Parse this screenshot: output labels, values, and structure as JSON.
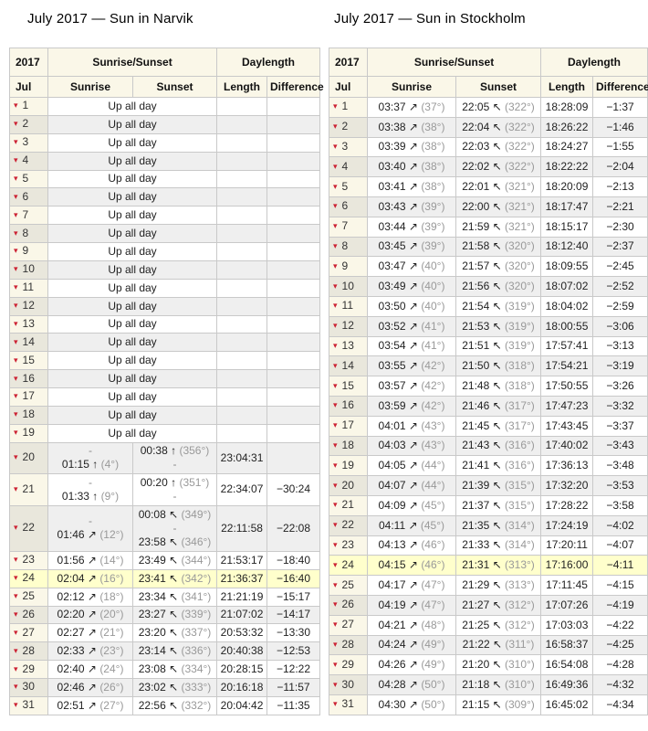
{
  "titles": {
    "narvik": "July 2017 — Sun in Narvik",
    "stockholm": "July 2017 — Sun in Stockholm"
  },
  "header": {
    "year": "2017",
    "month": "Jul",
    "group_rise_set": "Sunrise/Sunset",
    "group_daylength": "Daylength",
    "col_sunrise": "Sunrise",
    "col_sunset": "Sunset",
    "col_length": "Length",
    "col_difference": "Difference"
  },
  "labels": {
    "up_all_day": "Up all day"
  },
  "icons": {
    "expand_row": "▾"
  },
  "colors": {
    "header_bg": "#faf7e8",
    "day_col_bg": "#faf7e8",
    "day_col_alt_bg": "#e9e7dc",
    "row_alt_bg": "#efefef",
    "row_highlight_bg": "#ffffcc",
    "expand_triangle": "#cc2233",
    "azimuth_text": "#999999",
    "border": "#c9c9c9"
  },
  "narvik": {
    "rows": [
      {
        "day": 1,
        "up": true
      },
      {
        "day": 2,
        "up": true
      },
      {
        "day": 3,
        "up": true
      },
      {
        "day": 4,
        "up": true
      },
      {
        "day": 5,
        "up": true
      },
      {
        "day": 6,
        "up": true
      },
      {
        "day": 7,
        "up": true
      },
      {
        "day": 8,
        "up": true
      },
      {
        "day": 9,
        "up": true
      },
      {
        "day": 10,
        "up": true
      },
      {
        "day": 11,
        "up": true
      },
      {
        "day": 12,
        "up": true
      },
      {
        "day": 13,
        "up": true
      },
      {
        "day": 14,
        "up": true
      },
      {
        "day": 15,
        "up": true
      },
      {
        "day": 16,
        "up": true
      },
      {
        "day": 17,
        "up": true
      },
      {
        "day": 18,
        "up": true
      },
      {
        "day": 19,
        "up": true
      },
      {
        "day": 20,
        "sunrise": [
          "-",
          "01:15 ↑ (4°)"
        ],
        "sunset": [
          "00:38 ↑ (356°)",
          "-"
        ],
        "length": "23:04:31",
        "diff": ""
      },
      {
        "day": 21,
        "sunrise": [
          "-",
          "01:33 ↑ (9°)"
        ],
        "sunset": [
          "00:20 ↑ (351°)",
          "-"
        ],
        "length": "22:34:07",
        "diff": "−30:24"
      },
      {
        "day": 22,
        "sunrise": [
          "-",
          "01:46 ↗ (12°)"
        ],
        "sunset": [
          "00:08 ↖ (349°)",
          "-",
          "23:58 ↖ (346°)"
        ],
        "length": "22:11:58",
        "diff": "−22:08"
      },
      {
        "day": 23,
        "sunrise": [
          "01:56 ↗ (14°)"
        ],
        "sunset": [
          "23:49 ↖ (344°)"
        ],
        "length": "21:53:17",
        "diff": "−18:40"
      },
      {
        "day": 24,
        "sunrise": [
          "02:04 ↗ (16°)"
        ],
        "sunset": [
          "23:41 ↖ (342°)"
        ],
        "length": "21:36:37",
        "diff": "−16:40",
        "highlight": true
      },
      {
        "day": 25,
        "sunrise": [
          "02:12 ↗ (18°)"
        ],
        "sunset": [
          "23:34 ↖ (341°)"
        ],
        "length": "21:21:19",
        "diff": "−15:17"
      },
      {
        "day": 26,
        "sunrise": [
          "02:20 ↗ (20°)"
        ],
        "sunset": [
          "23:27 ↖ (339°)"
        ],
        "length": "21:07:02",
        "diff": "−14:17"
      },
      {
        "day": 27,
        "sunrise": [
          "02:27 ↗ (21°)"
        ],
        "sunset": [
          "23:20 ↖ (337°)"
        ],
        "length": "20:53:32",
        "diff": "−13:30"
      },
      {
        "day": 28,
        "sunrise": [
          "02:33 ↗ (23°)"
        ],
        "sunset": [
          "23:14 ↖ (336°)"
        ],
        "length": "20:40:38",
        "diff": "−12:53"
      },
      {
        "day": 29,
        "sunrise": [
          "02:40 ↗ (24°)"
        ],
        "sunset": [
          "23:08 ↖ (334°)"
        ],
        "length": "20:28:15",
        "diff": "−12:22"
      },
      {
        "day": 30,
        "sunrise": [
          "02:46 ↗ (26°)"
        ],
        "sunset": [
          "23:02 ↖ (333°)"
        ],
        "length": "20:16:18",
        "diff": "−11:57"
      },
      {
        "day": 31,
        "sunrise": [
          "02:51 ↗ (27°)"
        ],
        "sunset": [
          "22:56 ↖ (332°)"
        ],
        "length": "20:04:42",
        "diff": "−11:35"
      }
    ]
  },
  "stockholm": {
    "rows": [
      {
        "day": 1,
        "sunrise": [
          "03:37 ↗ (37°)"
        ],
        "sunset": [
          "22:05 ↖ (322°)"
        ],
        "length": "18:28:09",
        "diff": "−1:37"
      },
      {
        "day": 2,
        "sunrise": [
          "03:38 ↗ (38°)"
        ],
        "sunset": [
          "22:04 ↖ (322°)"
        ],
        "length": "18:26:22",
        "diff": "−1:46"
      },
      {
        "day": 3,
        "sunrise": [
          "03:39 ↗ (38°)"
        ],
        "sunset": [
          "22:03 ↖ (322°)"
        ],
        "length": "18:24:27",
        "diff": "−1:55"
      },
      {
        "day": 4,
        "sunrise": [
          "03:40 ↗ (38°)"
        ],
        "sunset": [
          "22:02 ↖ (322°)"
        ],
        "length": "18:22:22",
        "diff": "−2:04"
      },
      {
        "day": 5,
        "sunrise": [
          "03:41 ↗ (38°)"
        ],
        "sunset": [
          "22:01 ↖ (321°)"
        ],
        "length": "18:20:09",
        "diff": "−2:13"
      },
      {
        "day": 6,
        "sunrise": [
          "03:43 ↗ (39°)"
        ],
        "sunset": [
          "22:00 ↖ (321°)"
        ],
        "length": "18:17:47",
        "diff": "−2:21"
      },
      {
        "day": 7,
        "sunrise": [
          "03:44 ↗ (39°)"
        ],
        "sunset": [
          "21:59 ↖ (321°)"
        ],
        "length": "18:15:17",
        "diff": "−2:30"
      },
      {
        "day": 8,
        "sunrise": [
          "03:45 ↗ (39°)"
        ],
        "sunset": [
          "21:58 ↖ (320°)"
        ],
        "length": "18:12:40",
        "diff": "−2:37"
      },
      {
        "day": 9,
        "sunrise": [
          "03:47 ↗ (40°)"
        ],
        "sunset": [
          "21:57 ↖ (320°)"
        ],
        "length": "18:09:55",
        "diff": "−2:45"
      },
      {
        "day": 10,
        "sunrise": [
          "03:49 ↗ (40°)"
        ],
        "sunset": [
          "21:56 ↖ (320°)"
        ],
        "length": "18:07:02",
        "diff": "−2:52"
      },
      {
        "day": 11,
        "sunrise": [
          "03:50 ↗ (40°)"
        ],
        "sunset": [
          "21:54 ↖ (319°)"
        ],
        "length": "18:04:02",
        "diff": "−2:59"
      },
      {
        "day": 12,
        "sunrise": [
          "03:52 ↗ (41°)"
        ],
        "sunset": [
          "21:53 ↖ (319°)"
        ],
        "length": "18:00:55",
        "diff": "−3:06"
      },
      {
        "day": 13,
        "sunrise": [
          "03:54 ↗ (41°)"
        ],
        "sunset": [
          "21:51 ↖ (319°)"
        ],
        "length": "17:57:41",
        "diff": "−3:13"
      },
      {
        "day": 14,
        "sunrise": [
          "03:55 ↗ (42°)"
        ],
        "sunset": [
          "21:50 ↖ (318°)"
        ],
        "length": "17:54:21",
        "diff": "−3:19"
      },
      {
        "day": 15,
        "sunrise": [
          "03:57 ↗ (42°)"
        ],
        "sunset": [
          "21:48 ↖ (318°)"
        ],
        "length": "17:50:55",
        "diff": "−3:26"
      },
      {
        "day": 16,
        "sunrise": [
          "03:59 ↗ (42°)"
        ],
        "sunset": [
          "21:46 ↖ (317°)"
        ],
        "length": "17:47:23",
        "diff": "−3:32"
      },
      {
        "day": 17,
        "sunrise": [
          "04:01 ↗ (43°)"
        ],
        "sunset": [
          "21:45 ↖ (317°)"
        ],
        "length": "17:43:45",
        "diff": "−3:37"
      },
      {
        "day": 18,
        "sunrise": [
          "04:03 ↗ (43°)"
        ],
        "sunset": [
          "21:43 ↖ (316°)"
        ],
        "length": "17:40:02",
        "diff": "−3:43"
      },
      {
        "day": 19,
        "sunrise": [
          "04:05 ↗ (44°)"
        ],
        "sunset": [
          "21:41 ↖ (316°)"
        ],
        "length": "17:36:13",
        "diff": "−3:48"
      },
      {
        "day": 20,
        "sunrise": [
          "04:07 ↗ (44°)"
        ],
        "sunset": [
          "21:39 ↖ (315°)"
        ],
        "length": "17:32:20",
        "diff": "−3:53"
      },
      {
        "day": 21,
        "sunrise": [
          "04:09 ↗ (45°)"
        ],
        "sunset": [
          "21:37 ↖ (315°)"
        ],
        "length": "17:28:22",
        "diff": "−3:58"
      },
      {
        "day": 22,
        "sunrise": [
          "04:11 ↗ (45°)"
        ],
        "sunset": [
          "21:35 ↖ (314°)"
        ],
        "length": "17:24:19",
        "diff": "−4:02"
      },
      {
        "day": 23,
        "sunrise": [
          "04:13 ↗ (46°)"
        ],
        "sunset": [
          "21:33 ↖ (314°)"
        ],
        "length": "17:20:11",
        "diff": "−4:07"
      },
      {
        "day": 24,
        "sunrise": [
          "04:15 ↗ (46°)"
        ],
        "sunset": [
          "21:31 ↖ (313°)"
        ],
        "length": "17:16:00",
        "diff": "−4:11",
        "highlight": true
      },
      {
        "day": 25,
        "sunrise": [
          "04:17 ↗ (47°)"
        ],
        "sunset": [
          "21:29 ↖ (313°)"
        ],
        "length": "17:11:45",
        "diff": "−4:15"
      },
      {
        "day": 26,
        "sunrise": [
          "04:19 ↗ (47°)"
        ],
        "sunset": [
          "21:27 ↖ (312°)"
        ],
        "length": "17:07:26",
        "diff": "−4:19"
      },
      {
        "day": 27,
        "sunrise": [
          "04:21 ↗ (48°)"
        ],
        "sunset": [
          "21:25 ↖ (312°)"
        ],
        "length": "17:03:03",
        "diff": "−4:22"
      },
      {
        "day": 28,
        "sunrise": [
          "04:24 ↗ (49°)"
        ],
        "sunset": [
          "21:22 ↖ (311°)"
        ],
        "length": "16:58:37",
        "diff": "−4:25"
      },
      {
        "day": 29,
        "sunrise": [
          "04:26 ↗ (49°)"
        ],
        "sunset": [
          "21:20 ↖ (310°)"
        ],
        "length": "16:54:08",
        "diff": "−4:28"
      },
      {
        "day": 30,
        "sunrise": [
          "04:28 ↗ (50°)"
        ],
        "sunset": [
          "21:18 ↖ (310°)"
        ],
        "length": "16:49:36",
        "diff": "−4:32"
      },
      {
        "day": 31,
        "sunrise": [
          "04:30 ↗ (50°)"
        ],
        "sunset": [
          "21:15 ↖ (309°)"
        ],
        "length": "16:45:02",
        "diff": "−4:34"
      }
    ]
  }
}
